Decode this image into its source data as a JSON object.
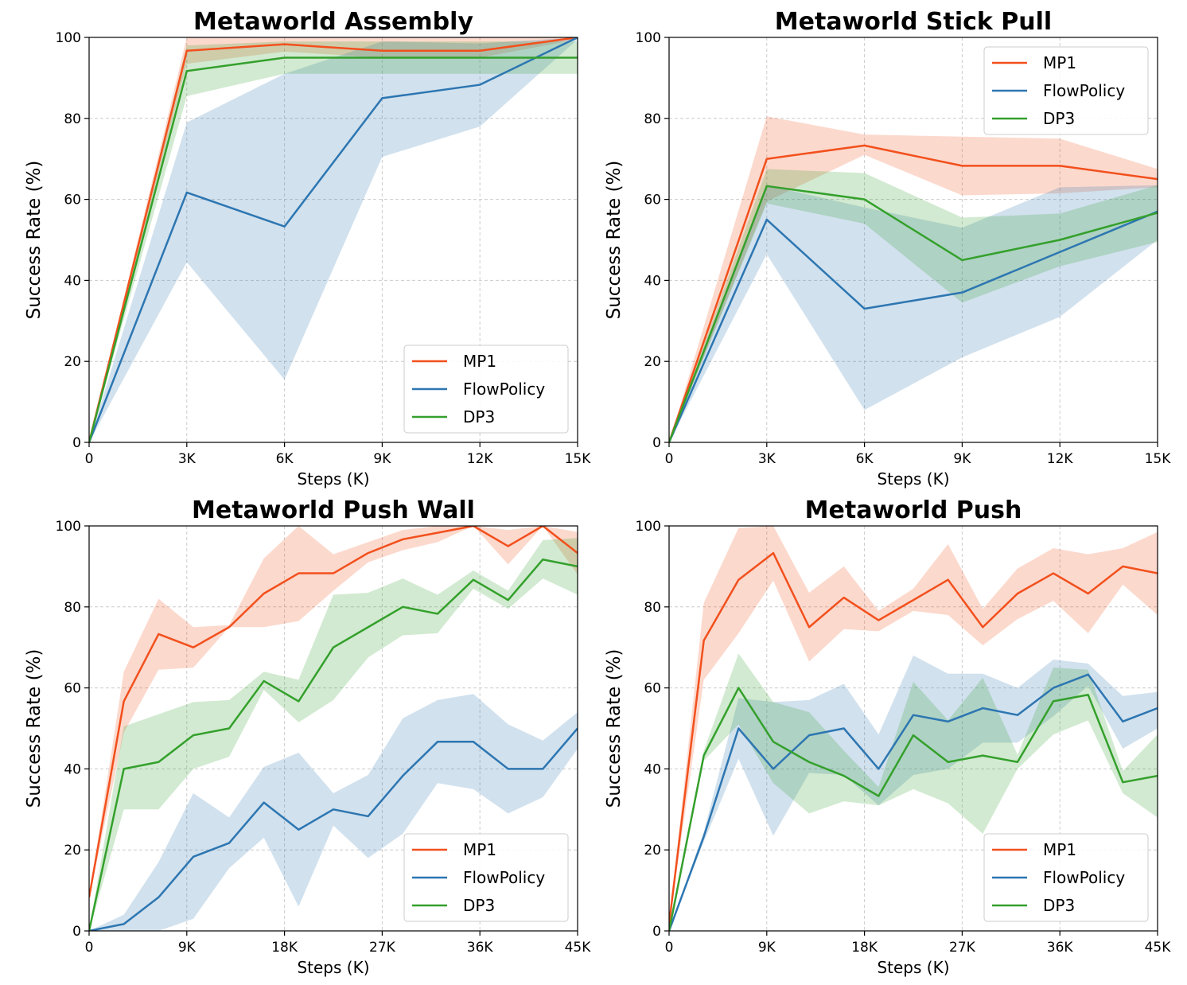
{
  "colors": {
    "MP1": "#f2501d",
    "FlowPolicy": "#2d76b1",
    "DP3": "#34a02c",
    "grid": "#cccccc",
    "axis": "#000000"
  },
  "chart_data": [
    {
      "type": "line",
      "title": "Metaworld Assembly",
      "xlabel": "Steps (K)",
      "ylabel": "Success Rate (%)",
      "xlim": [
        0,
        15
      ],
      "ylim": [
        0,
        100
      ],
      "xticks": [
        0,
        3,
        6,
        9,
        12,
        15
      ],
      "xtick_labels": [
        "0",
        "3K",
        "6K",
        "9K",
        "12K",
        "15K"
      ],
      "yticks": [
        0,
        20,
        40,
        60,
        80,
        100
      ],
      "ytick_labels": [
        "0",
        "20",
        "40",
        "60",
        "80",
        "100"
      ],
      "grid": true,
      "legend_position": "bottom-right",
      "x": [
        0,
        3,
        6,
        9,
        12,
        15
      ],
      "series": [
        {
          "name": "MP1",
          "values": [
            0,
            96.7,
            98.3,
            96.7,
            96.7,
            100
          ],
          "lower": [
            0,
            93.5,
            96.5,
            95,
            95,
            99.5
          ],
          "upper": [
            0,
            100,
            100,
            100,
            100,
            100
          ]
        },
        {
          "name": "FlowPolicy",
          "values": [
            0,
            61.7,
            53.3,
            85,
            88.3,
            100
          ],
          "lower": [
            0,
            44.5,
            15.5,
            70.5,
            78,
            99.5
          ],
          "upper": [
            0,
            79,
            91,
            99,
            98.5,
            100
          ]
        },
        {
          "name": "DP3",
          "values": [
            0,
            91.7,
            95,
            95,
            95,
            95
          ],
          "lower": [
            0,
            85.5,
            91,
            91,
            91,
            91
          ],
          "upper": [
            0,
            98,
            99,
            99,
            99,
            99
          ]
        }
      ]
    },
    {
      "type": "line",
      "title": "Metaworld Stick Pull",
      "xlabel": "Steps (K)",
      "ylabel": "Success Rate (%)",
      "xlim": [
        0,
        15
      ],
      "ylim": [
        0,
        100
      ],
      "xticks": [
        0,
        3,
        6,
        9,
        12,
        15
      ],
      "xtick_labels": [
        "0",
        "3K",
        "6K",
        "9K",
        "12K",
        "15K"
      ],
      "yticks": [
        0,
        20,
        40,
        60,
        80,
        100
      ],
      "ytick_labels": [
        "0",
        "20",
        "40",
        "60",
        "80",
        "100"
      ],
      "grid": true,
      "legend_position": "top-right",
      "x": [
        0,
        3,
        6,
        9,
        12,
        15
      ],
      "series": [
        {
          "name": "MP1",
          "values": [
            0,
            70,
            73.3,
            68.3,
            68.3,
            65
          ],
          "lower": [
            0,
            59.5,
            71,
            61,
            61.5,
            63
          ],
          "upper": [
            0,
            80.5,
            76,
            75.5,
            75,
            67.5
          ]
        },
        {
          "name": "FlowPolicy",
          "values": [
            0,
            55,
            33,
            37,
            47,
            57
          ],
          "lower": [
            0,
            46.5,
            8,
            21,
            31,
            50
          ],
          "upper": [
            0,
            63.5,
            58,
            53,
            63,
            63.5
          ]
        },
        {
          "name": "DP3",
          "values": [
            0,
            63.3,
            60,
            45,
            50,
            56.7
          ],
          "lower": [
            0,
            59,
            54,
            34.5,
            43.5,
            49.5
          ],
          "upper": [
            0,
            67.5,
            66.5,
            55.5,
            56.5,
            63.5
          ]
        }
      ]
    },
    {
      "type": "line",
      "title": "Metaworld Push Wall",
      "xlabel": "Steps (K)",
      "ylabel": "Success Rate (%)",
      "xlim": [
        0,
        45
      ],
      "ylim": [
        0,
        100
      ],
      "xticks": [
        0,
        9,
        18,
        27,
        36,
        45
      ],
      "xtick_labels": [
        "0",
        "9K",
        "18K",
        "27K",
        "36K",
        "45K"
      ],
      "yticks": [
        0,
        20,
        40,
        60,
        80,
        100
      ],
      "ytick_labels": [
        "0",
        "20",
        "40",
        "60",
        "80",
        "100"
      ],
      "grid": true,
      "legend_position": "bottom-right",
      "x": [
        0,
        3.2,
        6.4,
        9.6,
        12.9,
        16.1,
        19.3,
        22.5,
        25.7,
        28.9,
        32.1,
        35.4,
        38.6,
        41.8,
        45
      ],
      "series": [
        {
          "name": "MP1",
          "values": [
            8.3,
            56.7,
            73.3,
            70,
            75,
            83.3,
            88.3,
            88.3,
            93.3,
            96.7,
            98.3,
            100,
            95,
            100,
            93.3
          ],
          "lower": [
            8,
            49,
            64.5,
            65,
            75,
            75,
            76.5,
            84,
            91,
            94,
            96,
            100,
            90.5,
            100,
            88
          ],
          "upper": [
            8.5,
            64,
            82,
            75,
            75.5,
            92,
            100,
            93,
            96,
            99,
            100,
            100,
            99,
            100,
            98.5
          ]
        },
        {
          "name": "FlowPolicy",
          "values": [
            0,
            1.7,
            8.3,
            18.3,
            21.7,
            31.7,
            25,
            30,
            28.3,
            38.3,
            46.7,
            46.7,
            40,
            40,
            50
          ],
          "lower": [
            0,
            0,
            0,
            3,
            15.5,
            23,
            6,
            26,
            18,
            24,
            36.5,
            35,
            29,
            33,
            45
          ],
          "upper": [
            0,
            4,
            17,
            34,
            28,
            40.5,
            44,
            34,
            38.5,
            52.5,
            57,
            58.5,
            51,
            47,
            54
          ]
        },
        {
          "name": "DP3",
          "values": [
            0,
            40,
            41.7,
            48.3,
            50,
            61.7,
            56.7,
            70,
            75,
            80,
            78.3,
            86.7,
            81.7,
            91.7,
            90
          ],
          "lower": [
            0,
            30,
            30,
            40,
            43,
            59.5,
            51.5,
            57,
            67.5,
            73,
            73.5,
            84.5,
            79.5,
            87,
            83
          ],
          "upper": [
            0,
            50.5,
            53.5,
            56.5,
            57,
            64,
            62,
            83,
            83.5,
            87,
            83,
            89,
            84,
            96.5,
            97
          ]
        }
      ]
    },
    {
      "type": "line",
      "title": "Metaworld Push",
      "xlabel": "Steps (K)",
      "ylabel": "Success Rate (%)",
      "xlim": [
        0,
        45
      ],
      "ylim": [
        0,
        100
      ],
      "xticks": [
        0,
        9,
        18,
        27,
        36,
        45
      ],
      "xtick_labels": [
        "0",
        "9K",
        "18K",
        "27K",
        "36K",
        "45K"
      ],
      "yticks": [
        0,
        20,
        40,
        60,
        80,
        100
      ],
      "ytick_labels": [
        "0",
        "20",
        "40",
        "60",
        "80",
        "100"
      ],
      "grid": true,
      "legend_position": "bottom-right",
      "x": [
        0,
        3.2,
        6.4,
        9.6,
        12.9,
        16.1,
        19.3,
        22.5,
        25.7,
        28.9,
        32.1,
        35.4,
        38.6,
        41.8,
        45
      ],
      "series": [
        {
          "name": "MP1",
          "values": [
            1.7,
            71.7,
            86.7,
            93.3,
            75,
            82.3,
            76.7,
            81.7,
            86.7,
            75,
            83.3,
            88.3,
            83.3,
            90,
            88.3
          ],
          "lower": [
            1.5,
            62,
            73.5,
            86.5,
            66.5,
            74.5,
            74,
            79,
            78,
            70.5,
            77,
            81.5,
            73.5,
            85.5,
            78
          ],
          "upper": [
            2,
            81,
            99.5,
            100,
            83.5,
            90,
            79,
            84.5,
            95.5,
            79.5,
            89.5,
            94.5,
            93,
            94.5,
            98.5
          ]
        },
        {
          "name": "FlowPolicy",
          "values": [
            0,
            23.3,
            50,
            40,
            48.3,
            50,
            40,
            53.3,
            51.7,
            55,
            53.3,
            60,
            63.3,
            51.7,
            55
          ],
          "lower": [
            0,
            22,
            42.5,
            23.5,
            39,
            38.5,
            31,
            38.5,
            40,
            46.5,
            46.5,
            53,
            60.5,
            45,
            50
          ],
          "upper": [
            0,
            24.5,
            57.5,
            56.5,
            57,
            61,
            48.5,
            68,
            63.5,
            63.5,
            60,
            67,
            66,
            58,
            59
          ]
        },
        {
          "name": "DP3",
          "values": [
            0,
            43.3,
            60,
            46.7,
            41.7,
            38.3,
            33.3,
            48.3,
            41.7,
            43.3,
            41.7,
            56.7,
            58.3,
            36.7,
            38.3
          ],
          "lower": [
            0,
            42,
            51,
            36.5,
            29,
            32,
            31,
            35,
            31.5,
            24,
            40,
            48.5,
            52,
            34,
            28
          ],
          "upper": [
            0,
            44.5,
            68.5,
            56.5,
            54,
            44.5,
            35.5,
            61.5,
            52,
            62.5,
            43.5,
            65,
            64.5,
            39.5,
            48.5
          ]
        }
      ]
    }
  ]
}
